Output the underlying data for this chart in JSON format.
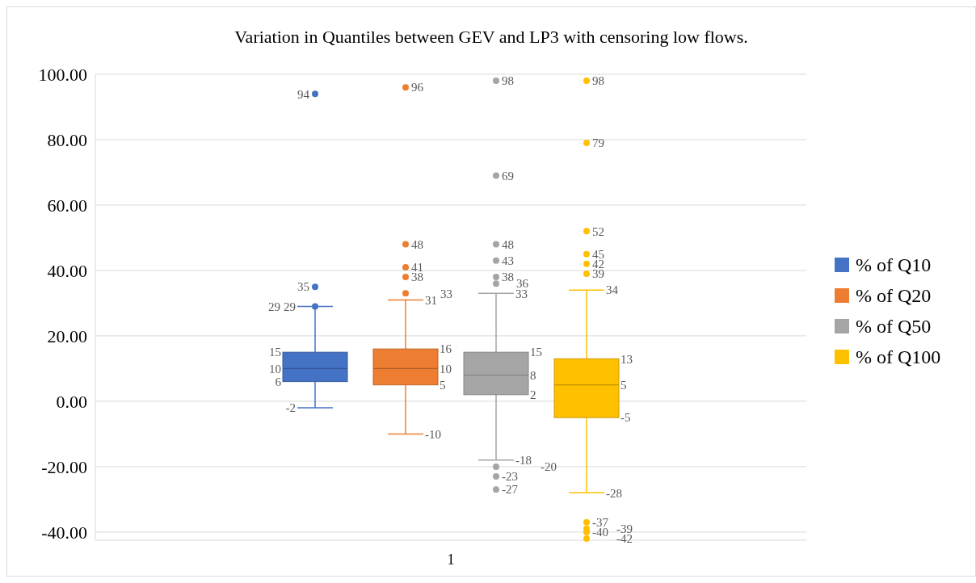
{
  "chart_data": {
    "type": "box",
    "title": "Variation in Quantiles between GEV and LP3 with censoring low flows.",
    "categories": [
      "1"
    ],
    "series": [
      {
        "name": "% of Q10",
        "color": "#4472c4",
        "boxes": [
          {
            "low": -2,
            "q1": 6,
            "median": 10,
            "q3": 15,
            "high": 29,
            "outliers": [
              94,
              35,
              29
            ]
          }
        ]
      },
      {
        "name": "% of Q20",
        "color": "#ed7d31",
        "boxes": [
          {
            "low": -10,
            "q1": 5,
            "median": 10,
            "q3": 16,
            "high": 31,
            "outliers": [
              96,
              48,
              41,
              38,
              33
            ]
          }
        ]
      },
      {
        "name": "% of Q50",
        "color": "#a5a5a5",
        "boxes": [
          {
            "low": -18,
            "q1": 2,
            "median": 8,
            "q3": 15,
            "high": 33,
            "outliers": [
              98,
              69,
              48,
              43,
              38,
              36,
              -20,
              -23,
              -27
            ]
          }
        ]
      },
      {
        "name": "% of Q100",
        "color": "#ffc000",
        "boxes": [
          {
            "low": -28,
            "q1": -5,
            "median": 5,
            "q3": 13,
            "high": 34,
            "outliers": [
              98,
              79,
              52,
              45,
              42,
              39,
              -37,
              -39,
              -40,
              -42
            ]
          }
        ]
      }
    ],
    "ylim": [
      -42.5,
      100
    ],
    "yticks": [
      {
        "value": -40,
        "label": "-40.00"
      },
      {
        "value": -20,
        "label": "-20.00"
      },
      {
        "value": 0,
        "label": "0.00"
      },
      {
        "value": 20,
        "label": "20.00"
      },
      {
        "value": 40,
        "label": "40.00"
      },
      {
        "value": 60,
        "label": "60.00"
      },
      {
        "value": 80,
        "label": "80.00"
      },
      {
        "value": 100,
        "label": "100.00"
      }
    ],
    "grid": "y",
    "legend": "right",
    "annotations": [
      "15",
      "10",
      "6",
      "29",
      "-2",
      "94",
      "35",
      "29",
      "16",
      "10",
      "5",
      "31",
      "-10",
      "96",
      "48",
      "41",
      "38",
      "33",
      "15",
      "8",
      "2",
      "33",
      "-18",
      "98",
      "69",
      "48",
      "43",
      "38",
      "36",
      "-20",
      "-23",
      "-27",
      "13",
      "5",
      "-5",
      "34",
      "-28",
      "98",
      "79",
      "52",
      "45",
      "42",
      "39",
      "-37",
      "-39",
      "-40",
      "-42"
    ]
  }
}
